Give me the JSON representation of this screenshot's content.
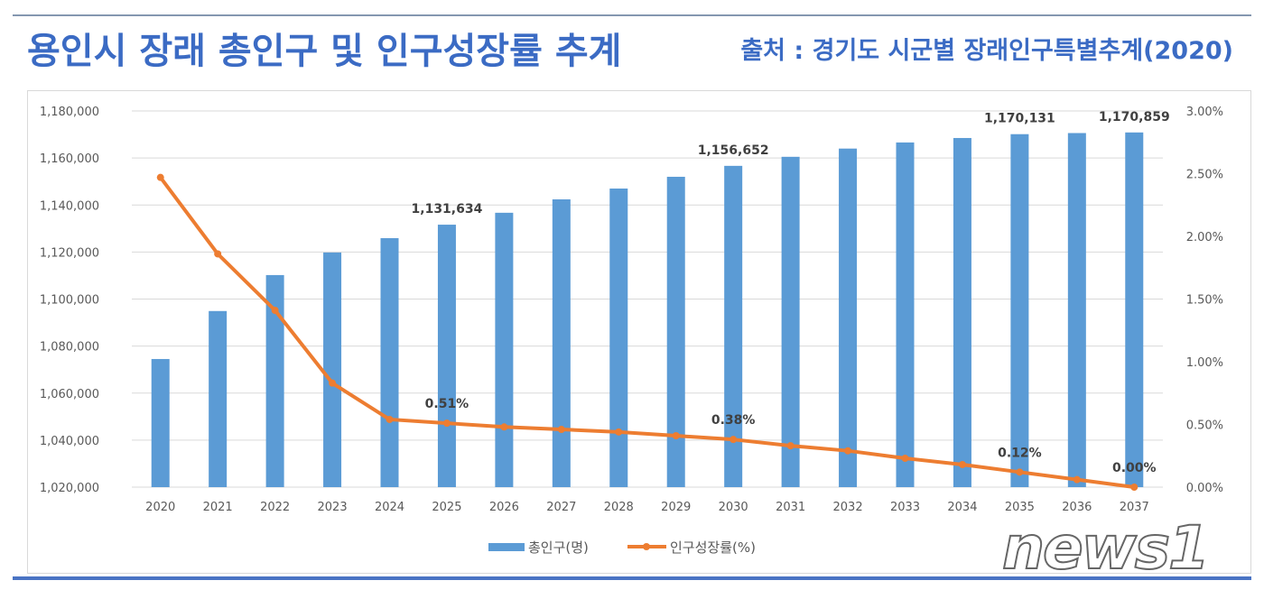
{
  "header": {
    "title": "용인시 장래 총인구 및 인구성장률 추계",
    "source": "출처 : 경기도 시군별 장래인구특별추계(2020)"
  },
  "watermark": "news1",
  "chart_data": {
    "type": "bar+line",
    "categories": [
      "2020",
      "2021",
      "2022",
      "2023",
      "2024",
      "2025",
      "2026",
      "2027",
      "2028",
      "2029",
      "2030",
      "2031",
      "2032",
      "2033",
      "2034",
      "2035",
      "2036",
      "2037"
    ],
    "series": [
      {
        "name": "총인구(명)",
        "type": "bar",
        "axis": "left",
        "color": "#5b9bd5",
        "values": [
          1074500,
          1094900,
          1110200,
          1119800,
          1125900,
          1131634,
          1136700,
          1142400,
          1147000,
          1152000,
          1156652,
          1160500,
          1164000,
          1166600,
          1168500,
          1170131,
          1170600,
          1170859
        ]
      },
      {
        "name": "인구성장률(%)",
        "type": "line",
        "axis": "right",
        "color": "#ed7d31",
        "values": [
          2.47,
          1.86,
          1.41,
          0.83,
          0.54,
          0.51,
          0.48,
          0.46,
          0.44,
          0.41,
          0.38,
          0.33,
          0.29,
          0.23,
          0.18,
          0.12,
          0.06,
          0.0
        ]
      }
    ],
    "bar_labels": {
      "5": "1,131,634",
      "10": "1,156,652",
      "15": "1,170,131",
      "17": "1,170,859"
    },
    "line_labels": {
      "5": "0.51%",
      "10": "0.38%",
      "15": "0.12%",
      "17": "0.00%"
    },
    "y_left": {
      "min": 1020000,
      "max": 1180000,
      "step": 20000,
      "ticks": [
        "1,020,000",
        "1,040,000",
        "1,060,000",
        "1,080,000",
        "1,100,000",
        "1,120,000",
        "1,140,000",
        "1,160,000",
        "1,180,000"
      ]
    },
    "y_right": {
      "min": 0,
      "max": 3,
      "step": 0.5,
      "ticks": [
        "0.00%",
        "0.50%",
        "1.00%",
        "1.50%",
        "2.00%",
        "2.50%",
        "3.00%"
      ]
    },
    "grid": true,
    "legend": "bottom"
  }
}
